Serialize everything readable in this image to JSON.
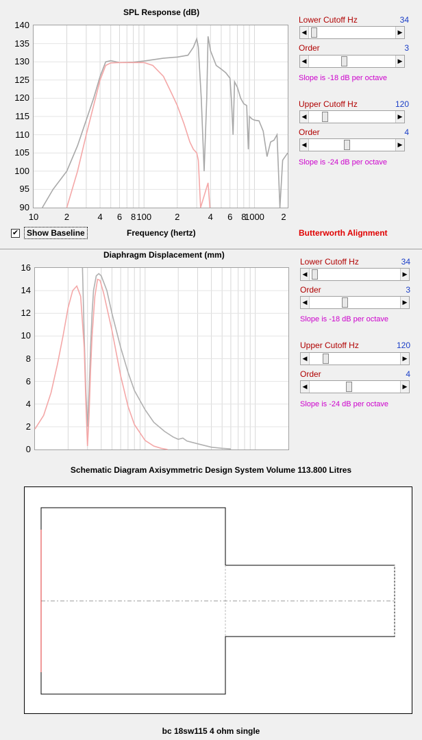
{
  "spl_chart": {
    "title": "SPL Response (dB)",
    "xlabel": "Frequency (hertz)",
    "y_ticks": [
      "140",
      "135",
      "130",
      "125",
      "120",
      "115",
      "110",
      "105",
      "100",
      "95",
      "90"
    ],
    "x_ticks": [
      "10",
      "2",
      "4",
      "6",
      "8",
      "100",
      "2",
      "4",
      "6",
      "8",
      "1000",
      "2"
    ]
  },
  "disp_chart": {
    "title": "Diaphragm Displacement (mm)",
    "y_ticks": [
      "16",
      "14",
      "12",
      "10",
      "8",
      "6",
      "4",
      "2",
      "0"
    ]
  },
  "chart_data": [
    {
      "type": "line",
      "title": "SPL Response (dB)",
      "xlabel": "Frequency (hertz)",
      "ylabel": "",
      "xscale": "log",
      "xlim": [
        10,
        2000
      ],
      "ylim": [
        90,
        140
      ],
      "grid": true,
      "series": [
        {
          "color": "#a8a8a8",
          "points": [
            [
              12,
              90
            ],
            [
              15,
              95
            ],
            [
              20,
              100
            ],
            [
              25,
              107
            ],
            [
              30,
              114
            ],
            [
              35,
              120
            ],
            [
              40,
              126
            ],
            [
              45,
              130
            ],
            [
              50,
              130.3
            ],
            [
              60,
              129.8
            ],
            [
              80,
              129.9
            ],
            [
              100,
              130.2
            ],
            [
              150,
              131
            ],
            [
              200,
              131.3
            ],
            [
              250,
              131.8
            ],
            [
              280,
              134
            ],
            [
              300,
              136.3
            ],
            [
              310,
              134
            ],
            [
              330,
              120
            ],
            [
              350,
              100
            ],
            [
              370,
              120
            ],
            [
              380,
              137
            ],
            [
              400,
              133
            ],
            [
              450,
              129
            ],
            [
              500,
              128
            ],
            [
              550,
              127
            ],
            [
              600,
              125.5
            ],
            [
              620,
              119
            ],
            [
              640,
              110
            ],
            [
              660,
              124.5
            ],
            [
              700,
              123
            ],
            [
              750,
              120
            ],
            [
              800,
              118.5
            ],
            [
              850,
              118
            ],
            [
              880,
              106
            ],
            [
              900,
              115
            ],
            [
              950,
              114.3
            ],
            [
              1000,
              114
            ],
            [
              1100,
              113.8
            ],
            [
              1200,
              111
            ],
            [
              1300,
              104
            ],
            [
              1400,
              108
            ],
            [
              1500,
              108.5
            ],
            [
              1600,
              110
            ],
            [
              1700,
              90
            ],
            [
              1800,
              103
            ],
            [
              2000,
              105
            ]
          ]
        },
        {
          "color": "#f4a7a7",
          "points": [
            [
              20,
              90
            ],
            [
              25,
              100
            ],
            [
              30,
              110
            ],
            [
              35,
              118
            ],
            [
              40,
              125
            ],
            [
              45,
              129
            ],
            [
              50,
              129.7
            ],
            [
              60,
              129.8
            ],
            [
              80,
              129.8
            ],
            [
              100,
              129.8
            ],
            [
              120,
              129
            ],
            [
              150,
              126
            ],
            [
              180,
              121
            ],
            [
              200,
              118
            ],
            [
              230,
              113
            ],
            [
              260,
              108
            ],
            [
              280,
              106
            ],
            [
              300,
              105
            ],
            [
              310,
              103
            ],
            [
              325,
              90
            ],
            [
              380,
              96.8
            ],
            [
              395,
              90
            ]
          ]
        }
      ]
    },
    {
      "type": "line",
      "title": "Diaphragm Displacement (mm)",
      "xlabel": "",
      "ylabel": "",
      "xscale": "log",
      "xlim": [
        10,
        2000
      ],
      "ylim": [
        0,
        16
      ],
      "grid": true,
      "series": [
        {
          "color": "#b0b0b0",
          "points": [
            [
              27,
              16
            ],
            [
              28,
              10
            ],
            [
              29,
              5
            ],
            [
              30,
              2
            ],
            [
              31,
              5
            ],
            [
              32,
              9
            ],
            [
              33,
              12
            ],
            [
              34,
              14
            ],
            [
              36,
              15.3
            ],
            [
              38,
              15.5
            ],
            [
              40,
              15.3
            ],
            [
              45,
              14
            ],
            [
              50,
              12
            ],
            [
              60,
              9
            ],
            [
              70,
              6.8
            ],
            [
              80,
              5.2
            ],
            [
              100,
              3.5
            ],
            [
              120,
              2.4
            ],
            [
              150,
              1.6
            ],
            [
              180,
              1.1
            ],
            [
              200,
              0.9
            ],
            [
              220,
              1.0
            ],
            [
              240,
              0.75
            ],
            [
              300,
              0.5
            ],
            [
              400,
              0.2
            ],
            [
              500,
              0.1
            ],
            [
              600,
              0.05
            ]
          ]
        },
        {
          "color": "#f4a7a7",
          "points": [
            [
              10,
              1.8
            ],
            [
              12,
              3
            ],
            [
              14,
              5
            ],
            [
              16,
              7.5
            ],
            [
              18,
              10
            ],
            [
              20,
              12.5
            ],
            [
              22,
              14
            ],
            [
              24,
              14.4
            ],
            [
              26,
              13.5
            ],
            [
              28,
              9
            ],
            [
              29,
              4
            ],
            [
              30,
              0.3
            ],
            [
              31,
              3
            ],
            [
              32,
              7
            ],
            [
              33,
              10
            ],
            [
              35,
              13.5
            ],
            [
              37,
              15
            ],
            [
              39,
              14.9
            ],
            [
              42,
              13.8
            ],
            [
              50,
              10.5
            ],
            [
              60,
              6.5
            ],
            [
              70,
              3.8
            ],
            [
              80,
              2.2
            ],
            [
              100,
              0.8
            ],
            [
              120,
              0.3
            ],
            [
              140,
              0.1
            ],
            [
              160,
              0
            ]
          ]
        }
      ]
    }
  ],
  "baseline": {
    "checked": true,
    "check_glyph": "✔",
    "label": "Show Baseline"
  },
  "alignment": "Butterworth Alignment",
  "controls": [
    {
      "lower_label": "Lower Cutoff  Hz",
      "lower_value": "34",
      "order1_label": "Order",
      "order1_value": "3",
      "slope1": "Slope is -18 dB per octave",
      "upper_label": "Upper Cutoff  Hz",
      "upper_value": "120",
      "order2_label": "Order",
      "order2_value": "4",
      "slope2": "Slope is -24 dB per octave"
    },
    {
      "lower_label": "Lower Cutoff  Hz",
      "lower_value": "34",
      "order1_label": "Order",
      "order1_value": "3",
      "slope1": "Slope is -18 dB per octave",
      "upper_label": "Upper Cutoff  Hz",
      "upper_value": "120",
      "order2_label": "Order",
      "order2_value": "4",
      "slope2": "Slope is -24 dB per octave"
    }
  ],
  "slider_arrows": {
    "left": "◀",
    "right": "▶"
  },
  "schematic": {
    "title": "Schematic Diagram   Axisymmetric Design   System Volume 113.800 Litres",
    "footer": "bc 18sw115 4 ohm single"
  }
}
